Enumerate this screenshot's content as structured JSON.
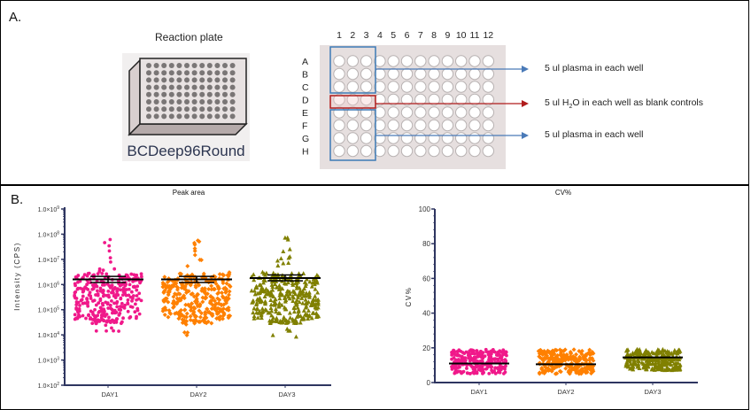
{
  "panel_a": {
    "label": "A.",
    "plate_title": "Reaction plate",
    "plate_name": "BCDeep96Round",
    "columns": [
      "1",
      "2",
      "3",
      "4",
      "5",
      "6",
      "7",
      "8",
      "9",
      "10",
      "11",
      "12"
    ],
    "rows": [
      "A",
      "B",
      "C",
      "D",
      "E",
      "F",
      "G",
      "H"
    ],
    "annotations": [
      {
        "text_pre": "5 ul plasma in each well",
        "sub": "",
        "text_post": "",
        "color": "#4a7ab8"
      },
      {
        "text_pre": "5 ul H",
        "sub": "2",
        "text_post": "O in each well as blank controls",
        "color": "#b01c1c"
      },
      {
        "text_pre": "5 ul plasma in each well",
        "sub": "",
        "text_post": "",
        "color": "#4a7ab8"
      }
    ]
  },
  "panel_b": {
    "label": "B."
  },
  "chart_data": [
    {
      "type": "scatter",
      "title": "Peak area",
      "xlabel": "",
      "ylabel": "Intensity (CPS)",
      "yscale": "log",
      "ylim": [
        100,
        1000000000
      ],
      "yticks": [
        "1.0×10",
        "1.0×10",
        "1.0×10",
        "1.0×10",
        "1.0×10",
        "1.0×10",
        "1.0×10",
        "1.0×10"
      ],
      "ytick_exponents": [
        "2",
        "3",
        "4",
        "5",
        "6",
        "7",
        "8",
        "9"
      ],
      "categories": [
        "DAY1",
        "DAY2",
        "DAY3"
      ],
      "series": [
        {
          "name": "DAY1",
          "color": "#f0198a",
          "marker": "circle",
          "min": 10000,
          "max": 90000000,
          "mean": 1600000,
          "sem_low": 1200000,
          "sem_high": 2100000
        },
        {
          "name": "DAY2",
          "color": "#ff8000",
          "marker": "diamond",
          "min": 6000,
          "max": 90000000,
          "mean": 1600000,
          "sem_low": 1200000,
          "sem_high": 2100000
        },
        {
          "name": "DAY3",
          "color": "#808000",
          "marker": "triangle",
          "min": 8000,
          "max": 100000000,
          "mean": 1800000,
          "sem_low": 1400000,
          "sem_high": 2400000
        }
      ]
    },
    {
      "type": "scatter",
      "title": "CV%",
      "xlabel": "",
      "ylabel": "CV%",
      "ylim": [
        0,
        100
      ],
      "yticks": [
        "0",
        "20",
        "40",
        "60",
        "80",
        "100"
      ],
      "categories": [
        "DAY1",
        "DAY2",
        "DAY3"
      ],
      "series": [
        {
          "name": "DAY1",
          "color": "#f0198a",
          "marker": "circle",
          "min": 3,
          "max": 20,
          "mean": 11
        },
        {
          "name": "DAY2",
          "color": "#ff8000",
          "marker": "diamond",
          "min": 3,
          "max": 20,
          "mean": 10.5
        },
        {
          "name": "DAY3",
          "color": "#808000",
          "marker": "triangle",
          "min": 5,
          "max": 20,
          "mean": 14.5
        }
      ]
    }
  ]
}
